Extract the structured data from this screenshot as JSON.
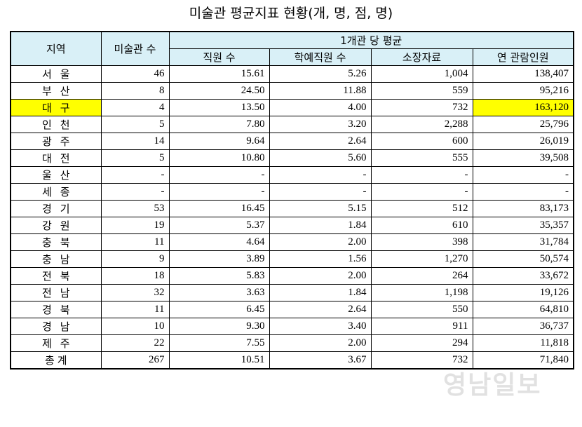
{
  "title": "미술관 평균지표 현황(개, 명, 점, 명)",
  "headers": {
    "region": "지역",
    "count": "미술관 수",
    "group": "1개관 당 평균",
    "staff": "직원 수",
    "curators": "학예직원 수",
    "holdings": "소장자료",
    "visitors": "연 관람인원"
  },
  "rows": [
    {
      "region": "서울",
      "count": "46",
      "staff": "15.61",
      "curators": "5.26",
      "holdings": "1,004",
      "visitors": "138,407"
    },
    {
      "region": "부산",
      "count": "8",
      "staff": "24.50",
      "curators": "11.88",
      "holdings": "559",
      "visitors": "95,216"
    },
    {
      "region": "대구",
      "count": "4",
      "staff": "13.50",
      "curators": "4.00",
      "holdings": "732",
      "visitors": "163,120"
    },
    {
      "region": "인천",
      "count": "5",
      "staff": "7.80",
      "curators": "3.20",
      "holdings": "2,288",
      "visitors": "25,796"
    },
    {
      "region": "광주",
      "count": "14",
      "staff": "9.64",
      "curators": "2.64",
      "holdings": "600",
      "visitors": "26,019"
    },
    {
      "region": "대전",
      "count": "5",
      "staff": "10.80",
      "curators": "5.60",
      "holdings": "555",
      "visitors": "39,508"
    },
    {
      "region": "울산",
      "count": "-",
      "staff": "-",
      "curators": "-",
      "holdings": "-",
      "visitors": "-"
    },
    {
      "region": "세종",
      "count": "-",
      "staff": "-",
      "curators": "-",
      "holdings": "-",
      "visitors": "-"
    },
    {
      "region": "경기",
      "count": "53",
      "staff": "16.45",
      "curators": "5.15",
      "holdings": "512",
      "visitors": "83,173"
    },
    {
      "region": "강원",
      "count": "19",
      "staff": "5.37",
      "curators": "1.84",
      "holdings": "610",
      "visitors": "35,357"
    },
    {
      "region": "충북",
      "count": "11",
      "staff": "4.64",
      "curators": "2.00",
      "holdings": "398",
      "visitors": "31,784"
    },
    {
      "region": "충남",
      "count": "9",
      "staff": "3.89",
      "curators": "1.56",
      "holdings": "1,270",
      "visitors": "50,574"
    },
    {
      "region": "전북",
      "count": "18",
      "staff": "5.83",
      "curators": "2.00",
      "holdings": "264",
      "visitors": "33,672"
    },
    {
      "region": "전남",
      "count": "32",
      "staff": "3.63",
      "curators": "1.84",
      "holdings": "1,198",
      "visitors": "19,126"
    },
    {
      "region": "경북",
      "count": "11",
      "staff": "6.45",
      "curators": "2.64",
      "holdings": "550",
      "visitors": "64,810"
    },
    {
      "region": "경남",
      "count": "10",
      "staff": "9.30",
      "curators": "3.40",
      "holdings": "911",
      "visitors": "36,737"
    },
    {
      "region": "제주",
      "count": "22",
      "staff": "7.55",
      "curators": "2.00",
      "holdings": "294",
      "visitors": "11,818"
    }
  ],
  "total": {
    "region": "총계",
    "count": "267",
    "staff": "10.51",
    "curators": "3.67",
    "holdings": "732",
    "visitors": "71,840"
  },
  "watermark": "영남일보",
  "colors": {
    "header_bg": "#d9f0f7",
    "highlight": "#ffff00"
  }
}
